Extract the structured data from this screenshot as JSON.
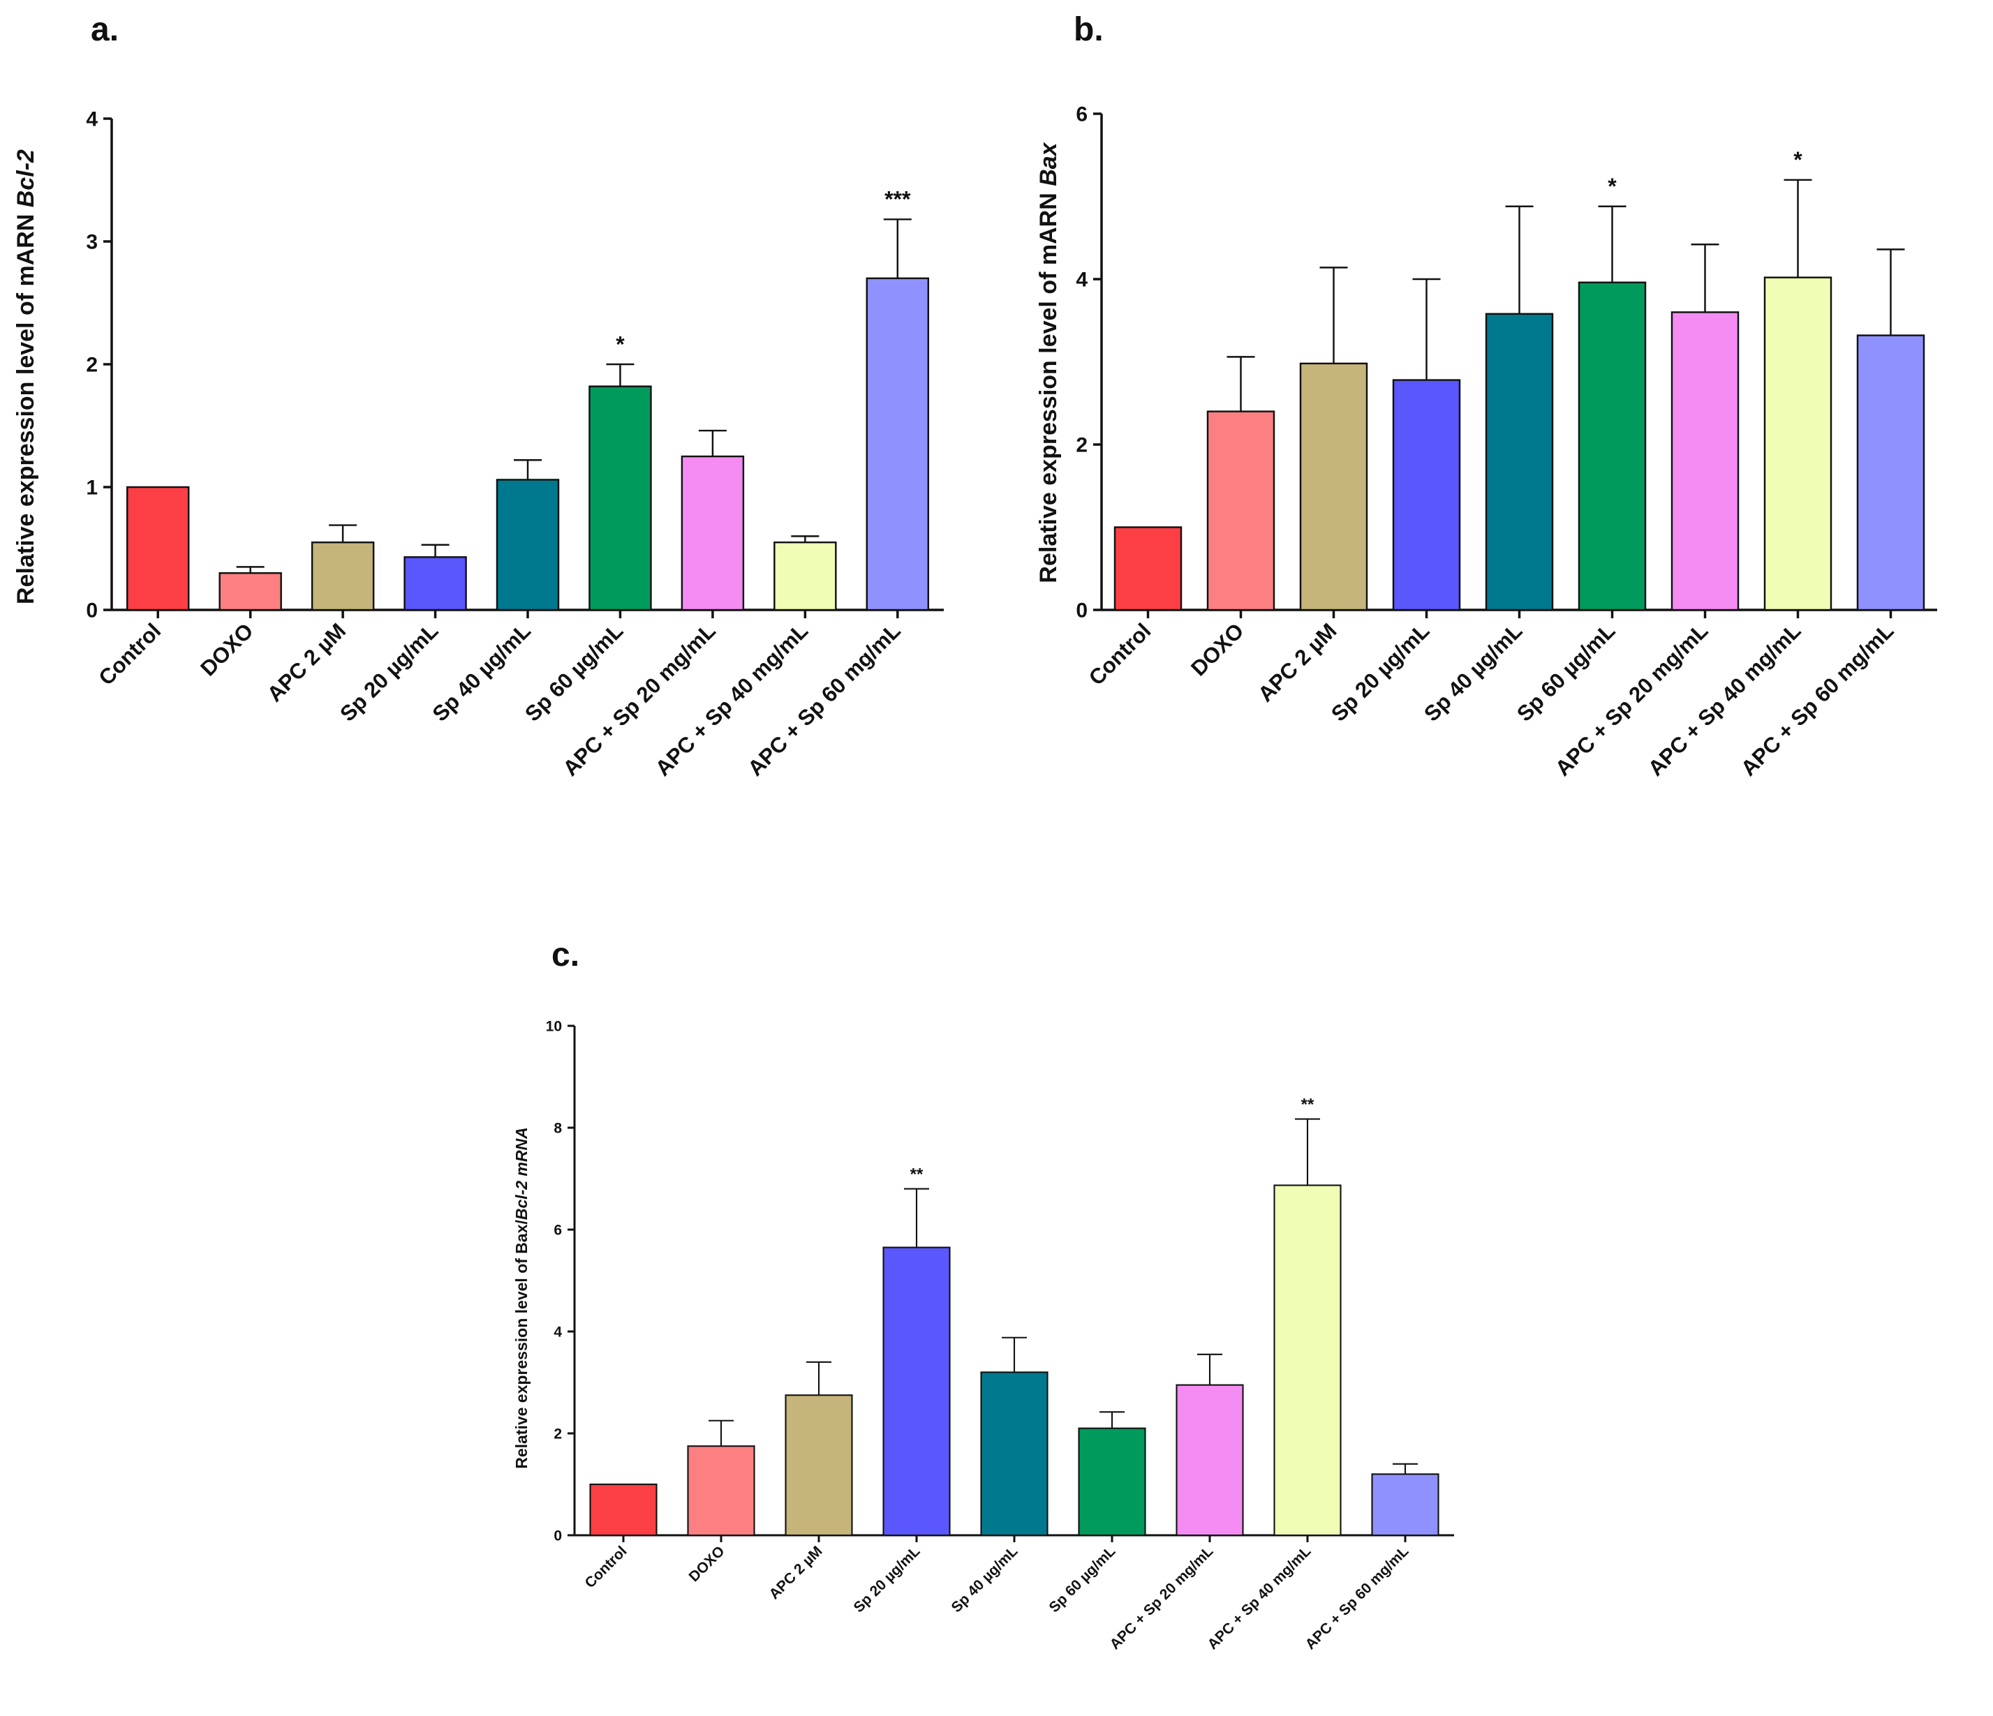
{
  "chart_data": [
    {
      "panel": "a.",
      "type": "bar",
      "ylabel_plain": "Relative expression level of  mARN ",
      "ylabel_italic": "Bcl-2",
      "ylim": [
        0,
        4
      ],
      "yticks": [
        "0",
        "1",
        "2",
        "3",
        "4"
      ],
      "categories": [
        "Control",
        "DOXO",
        "APC 2 µM",
        "Sp 20 µg/mL",
        "Sp 40 µg/mL",
        "Sp 60 µg/mL",
        "APC + Sp 20 mg/mL",
        "APC + Sp 40 mg/mL",
        "APC + Sp 60 mg/mL"
      ],
      "values": [
        1.0,
        0.3,
        0.55,
        0.43,
        1.06,
        1.82,
        1.25,
        0.55,
        2.7
      ],
      "errors": [
        0,
        0.05,
        0.14,
        0.1,
        0.16,
        0.18,
        0.21,
        0.05,
        0.48
      ],
      "significance": [
        "",
        "",
        "",
        "",
        "",
        "*",
        "",
        "",
        "***"
      ]
    },
    {
      "panel": "b.",
      "type": "bar",
      "ylabel_plain": "Relative expression level of mARN ",
      "ylabel_italic": "Bax",
      "ylim": [
        0,
        6
      ],
      "yticks": [
        "0",
        "2",
        "4",
        "6"
      ],
      "categories": [
        "Control",
        "DOXO",
        "APC 2 µM",
        "Sp 20 µg/mL",
        "Sp 40 µg/mL",
        "Sp 60 µg/mL",
        "APC + Sp 20 mg/mL",
        "APC + Sp 40 mg/mL",
        "APC + Sp 60 mg/mL"
      ],
      "values": [
        1.0,
        2.4,
        2.98,
        2.78,
        3.58,
        3.96,
        3.6,
        4.02,
        3.32
      ],
      "errors": [
        0,
        0.66,
        1.16,
        1.22,
        1.3,
        0.92,
        0.82,
        1.18,
        1.04
      ],
      "significance": [
        "",
        "",
        "",
        "",
        "",
        "*",
        "",
        "*",
        ""
      ]
    },
    {
      "panel": "c.",
      "type": "bar",
      "ylabel_plain": "Relative expression level of Bax/",
      "ylabel_italic": "Bcl-2 mRNA",
      "ylim": [
        0,
        10
      ],
      "yticks": [
        "0",
        "2",
        "4",
        "6",
        "8",
        "10"
      ],
      "categories": [
        "Control",
        "DOXO",
        "APC 2 µM",
        "Sp 20 µg/mL",
        "Sp 40 µg/mL",
        "Sp 60 µg/mL",
        "APC + Sp 20 mg/mL",
        "APC + Sp 40 mg/mL",
        "APC + Sp 60 mg/mL"
      ],
      "values": [
        1.0,
        1.75,
        2.75,
        5.65,
        3.2,
        2.1,
        2.95,
        6.87,
        1.2
      ],
      "errors": [
        0,
        0.5,
        0.65,
        1.15,
        0.68,
        0.32,
        0.6,
        1.3,
        0.2
      ],
      "significance": [
        "",
        "",
        "",
        "**",
        "",
        "",
        "",
        "**",
        ""
      ]
    }
  ],
  "colors": [
    "#fb3f44",
    "#fc8082",
    "#c5b57a",
    "#5a57fc",
    "#00798f",
    "#009b5c",
    "#f58cf3",
    "#f0fdb5",
    "#8f91fe"
  ]
}
